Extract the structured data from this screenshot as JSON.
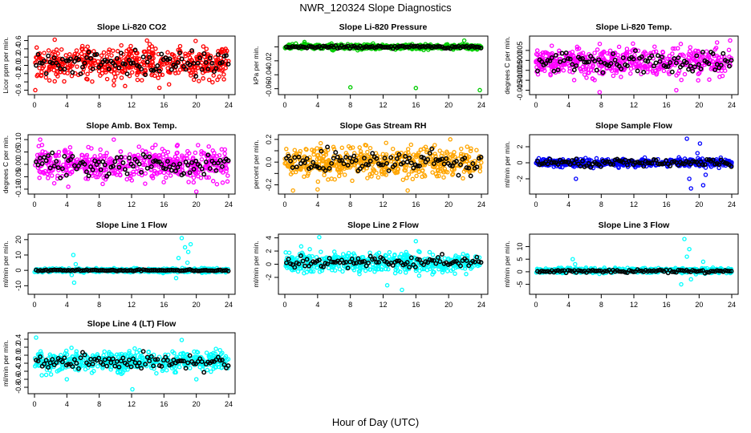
{
  "figure": {
    "title": "NWR_120324  Slope Diagnostics",
    "xlabel": "Hour of Day (UTC)"
  },
  "chart_data": [
    {
      "type": "scatter",
      "title": "Slope Li-820 CO2",
      "ylabel": "Licor ppm per min.",
      "xlim": [
        0,
        24
      ],
      "ylim": [
        -0.65,
        0.65
      ],
      "yticks": [
        -0.6,
        -0.4,
        -0.2,
        0.0,
        0.2,
        0.4,
        0.6
      ],
      "yticklabels": [
        "-0.6",
        "",
        "-0.2",
        "0.0",
        "0.2",
        "0.4",
        "0.6"
      ],
      "color": "#ff0000",
      "center": 0.05,
      "spread": 0.28,
      "hourly_center": 0.05,
      "hourly_spread": 0.2,
      "outliers": [
        [
          0.1,
          -0.6
        ],
        [
          2.5,
          0.62
        ],
        [
          13.9,
          0.6
        ],
        [
          11.2,
          -0.5
        ]
      ]
    },
    {
      "type": "scatter",
      "title": "Slope Li-820 Pressure",
      "ylabel": "kPa per min.",
      "xlim": [
        0,
        24
      ],
      "ylim": [
        -0.065,
        0.012
      ],
      "yticks": [
        -0.06,
        -0.04,
        -0.02,
        0.0
      ],
      "yticklabels": [
        "-0.06",
        "-0.04",
        "-0.02",
        ""
      ],
      "color": "#00cc00",
      "center": 0.0,
      "spread": 0.0025,
      "hourly_center": 0.0,
      "hourly_spread": 0.0015,
      "outliers": [
        [
          8.0,
          -0.058
        ],
        [
          16.0,
          -0.059
        ],
        [
          23.8,
          -0.062
        ],
        [
          2.4,
          0.007
        ],
        [
          21.9,
          0.009
        ]
      ]
    },
    {
      "type": "scatter",
      "title": "Slope Li-820 Temp.",
      "ylabel": "degrees C per min.",
      "xlim": [
        0,
        24
      ],
      "ylim": [
        -0.016,
        0.011
      ],
      "yticks": [
        -0.015,
        -0.01,
        -0.005,
        0.0,
        0.005
      ],
      "yticklabels": [
        "-0.015",
        "-0.010",
        "-0.005",
        "0.000",
        "0.005"
      ],
      "color": "#ff00ff",
      "center": -0.001,
      "spread": 0.005,
      "hourly_center": -0.001,
      "hourly_spread": 0.004,
      "outliers": [
        [
          23.8,
          0.01
        ],
        [
          7.8,
          -0.016
        ],
        [
          17.2,
          -0.015
        ],
        [
          22.2,
          0.009
        ]
      ]
    },
    {
      "type": "scatter",
      "title": "Slope Amb. Box Temp.",
      "ylabel": "degrees C per min.",
      "xlim": [
        0,
        24
      ],
      "ylim": [
        -0.11,
        0.11
      ],
      "yticks": [
        -0.1,
        -0.05,
        0.0,
        0.05,
        0.1
      ],
      "yticklabels": [
        "-0.10",
        "-0.05",
        "0.00",
        "0.05",
        "0.10"
      ],
      "color": "#ff00ff",
      "center": 0.0,
      "spread": 0.045,
      "hourly_center": 0.0,
      "hourly_spread": 0.035,
      "outliers": [
        [
          0.7,
          0.1
        ],
        [
          20.0,
          -0.11
        ],
        [
          9.8,
          0.1
        ]
      ]
    },
    {
      "type": "scatter",
      "title": "Slope Gas Stream RH",
      "ylabel": "percent per min.",
      "xlim": [
        0,
        24
      ],
      "ylim": [
        -0.26,
        0.22
      ],
      "yticks": [
        -0.2,
        -0.1,
        0.0,
        0.1,
        0.2
      ],
      "yticklabels": [
        "-0.2",
        "",
        "0.0",
        "",
        "0.2"
      ],
      "color": "#ffa500",
      "center": 0.0,
      "spread": 0.09,
      "hourly_center": 0.0,
      "hourly_spread": 0.07,
      "outliers": [
        [
          1.0,
          -0.25
        ],
        [
          15.0,
          -0.25
        ],
        [
          20.2,
          0.2
        ],
        [
          4.0,
          -0.24
        ]
      ]
    },
    {
      "type": "scatter",
      "title": "Slope Sample Flow",
      "ylabel": "ml/min per min.",
      "xlim": [
        0,
        24
      ],
      "ylim": [
        -3.6,
        3.2
      ],
      "yticks": [
        -2,
        0,
        2
      ],
      "yticklabels": [
        "-2",
        "0",
        "2"
      ],
      "color": "#0000ff",
      "center": 0.0,
      "spread": 0.35,
      "hourly_center": 0.0,
      "hourly_spread": 0.3,
      "outliers": [
        [
          18.5,
          3.0
        ],
        [
          18.8,
          -2.0
        ],
        [
          19.0,
          -3.2
        ],
        [
          20.5,
          -2.8
        ],
        [
          20.1,
          2.4
        ],
        [
          4.9,
          -2.0
        ],
        [
          19.8,
          1.2
        ],
        [
          20.8,
          -1.5
        ]
      ]
    },
    {
      "type": "scatter",
      "title": "Slope Line 1 Flow",
      "ylabel": "ml/min per min.",
      "xlim": [
        0,
        24
      ],
      "ylim": [
        -14,
        22
      ],
      "yticks": [
        -10,
        0,
        10,
        20
      ],
      "yticklabels": [
        "-10",
        "0",
        "10",
        "20"
      ],
      "color": "#00ffff",
      "center": 0.0,
      "spread": 0.9,
      "hourly_center": 0.0,
      "hourly_spread": 0.3,
      "outliers": [
        [
          4.8,
          10
        ],
        [
          5.1,
          4
        ],
        [
          4.6,
          -3
        ],
        [
          18.2,
          21
        ],
        [
          18.6,
          15
        ],
        [
          19.0,
          12
        ],
        [
          17.8,
          8
        ],
        [
          19.3,
          17
        ],
        [
          18.9,
          5
        ],
        [
          17.5,
          -5
        ],
        [
          4.9,
          -8
        ]
      ]
    },
    {
      "type": "scatter",
      "title": "Slope Line 2 Flow",
      "ylabel": "ml/min per min.",
      "xlim": [
        0,
        24
      ],
      "ylim": [
        -4.2,
        4.2
      ],
      "yticks": [
        -2,
        0,
        2,
        4
      ],
      "yticklabels": [
        "-2",
        "0",
        "2",
        "4"
      ],
      "color": "#00ffff",
      "center": 0.2,
      "spread": 1.0,
      "hourly_center": 0.3,
      "hourly_spread": 0.6,
      "outliers": [
        [
          4.2,
          4.1
        ],
        [
          14.3,
          -3.9
        ],
        [
          16.0,
          3.5
        ],
        [
          12.5,
          -3.2
        ],
        [
          2.0,
          2.7
        ]
      ]
    },
    {
      "type": "scatter",
      "title": "Slope Line 3 Flow",
      "ylabel": "ml/min per min.",
      "xlim": [
        0,
        24
      ],
      "ylim": [
        -8,
        14
      ],
      "yticks": [
        -5,
        0,
        5,
        10
      ],
      "yticklabels": [
        "-5",
        "0",
        "5",
        "10"
      ],
      "color": "#00ffff",
      "center": 0.5,
      "spread": 0.7,
      "hourly_center": 0.2,
      "hourly_spread": 0.4,
      "outliers": [
        [
          4.5,
          5
        ],
        [
          4.8,
          3
        ],
        [
          18.2,
          13
        ],
        [
          18.5,
          6
        ],
        [
          19.0,
          -3
        ],
        [
          17.8,
          -5
        ],
        [
          20.5,
          4
        ],
        [
          18.8,
          9
        ],
        [
          19.6,
          -1
        ]
      ]
    },
    {
      "type": "scatter",
      "title": "Slope Line 4 (LT) Flow",
      "ylabel": "ml/min per min.",
      "xlim": [
        0,
        24
      ],
      "ylim": [
        -0.9,
        0.5
      ],
      "yticks": [
        -0.8,
        -0.6,
        -0.4,
        -0.2,
        0.0,
        0.2,
        0.4
      ],
      "yticklabels": [
        "-0.8",
        "-0.6",
        "-0.4",
        "-0.2",
        "0.0",
        "0.2",
        "0.4"
      ],
      "color": "#00ffff",
      "center": -0.15,
      "spread": 0.17,
      "hourly_center": -0.15,
      "hourly_spread": 0.13,
      "outliers": [
        [
          12.1,
          -0.85
        ],
        [
          4.0,
          -0.6
        ],
        [
          0.9,
          -0.5
        ],
        [
          18.2,
          0.38
        ],
        [
          20.0,
          -0.6
        ],
        [
          0.2,
          0.44
        ]
      ]
    }
  ],
  "xticks": [
    0,
    4,
    8,
    12,
    16,
    20,
    24
  ],
  "xticklabels": [
    "0",
    "4",
    "8",
    "12",
    "16",
    "20",
    "24"
  ],
  "series_colors": {
    "hourly_mean": "#000000"
  }
}
